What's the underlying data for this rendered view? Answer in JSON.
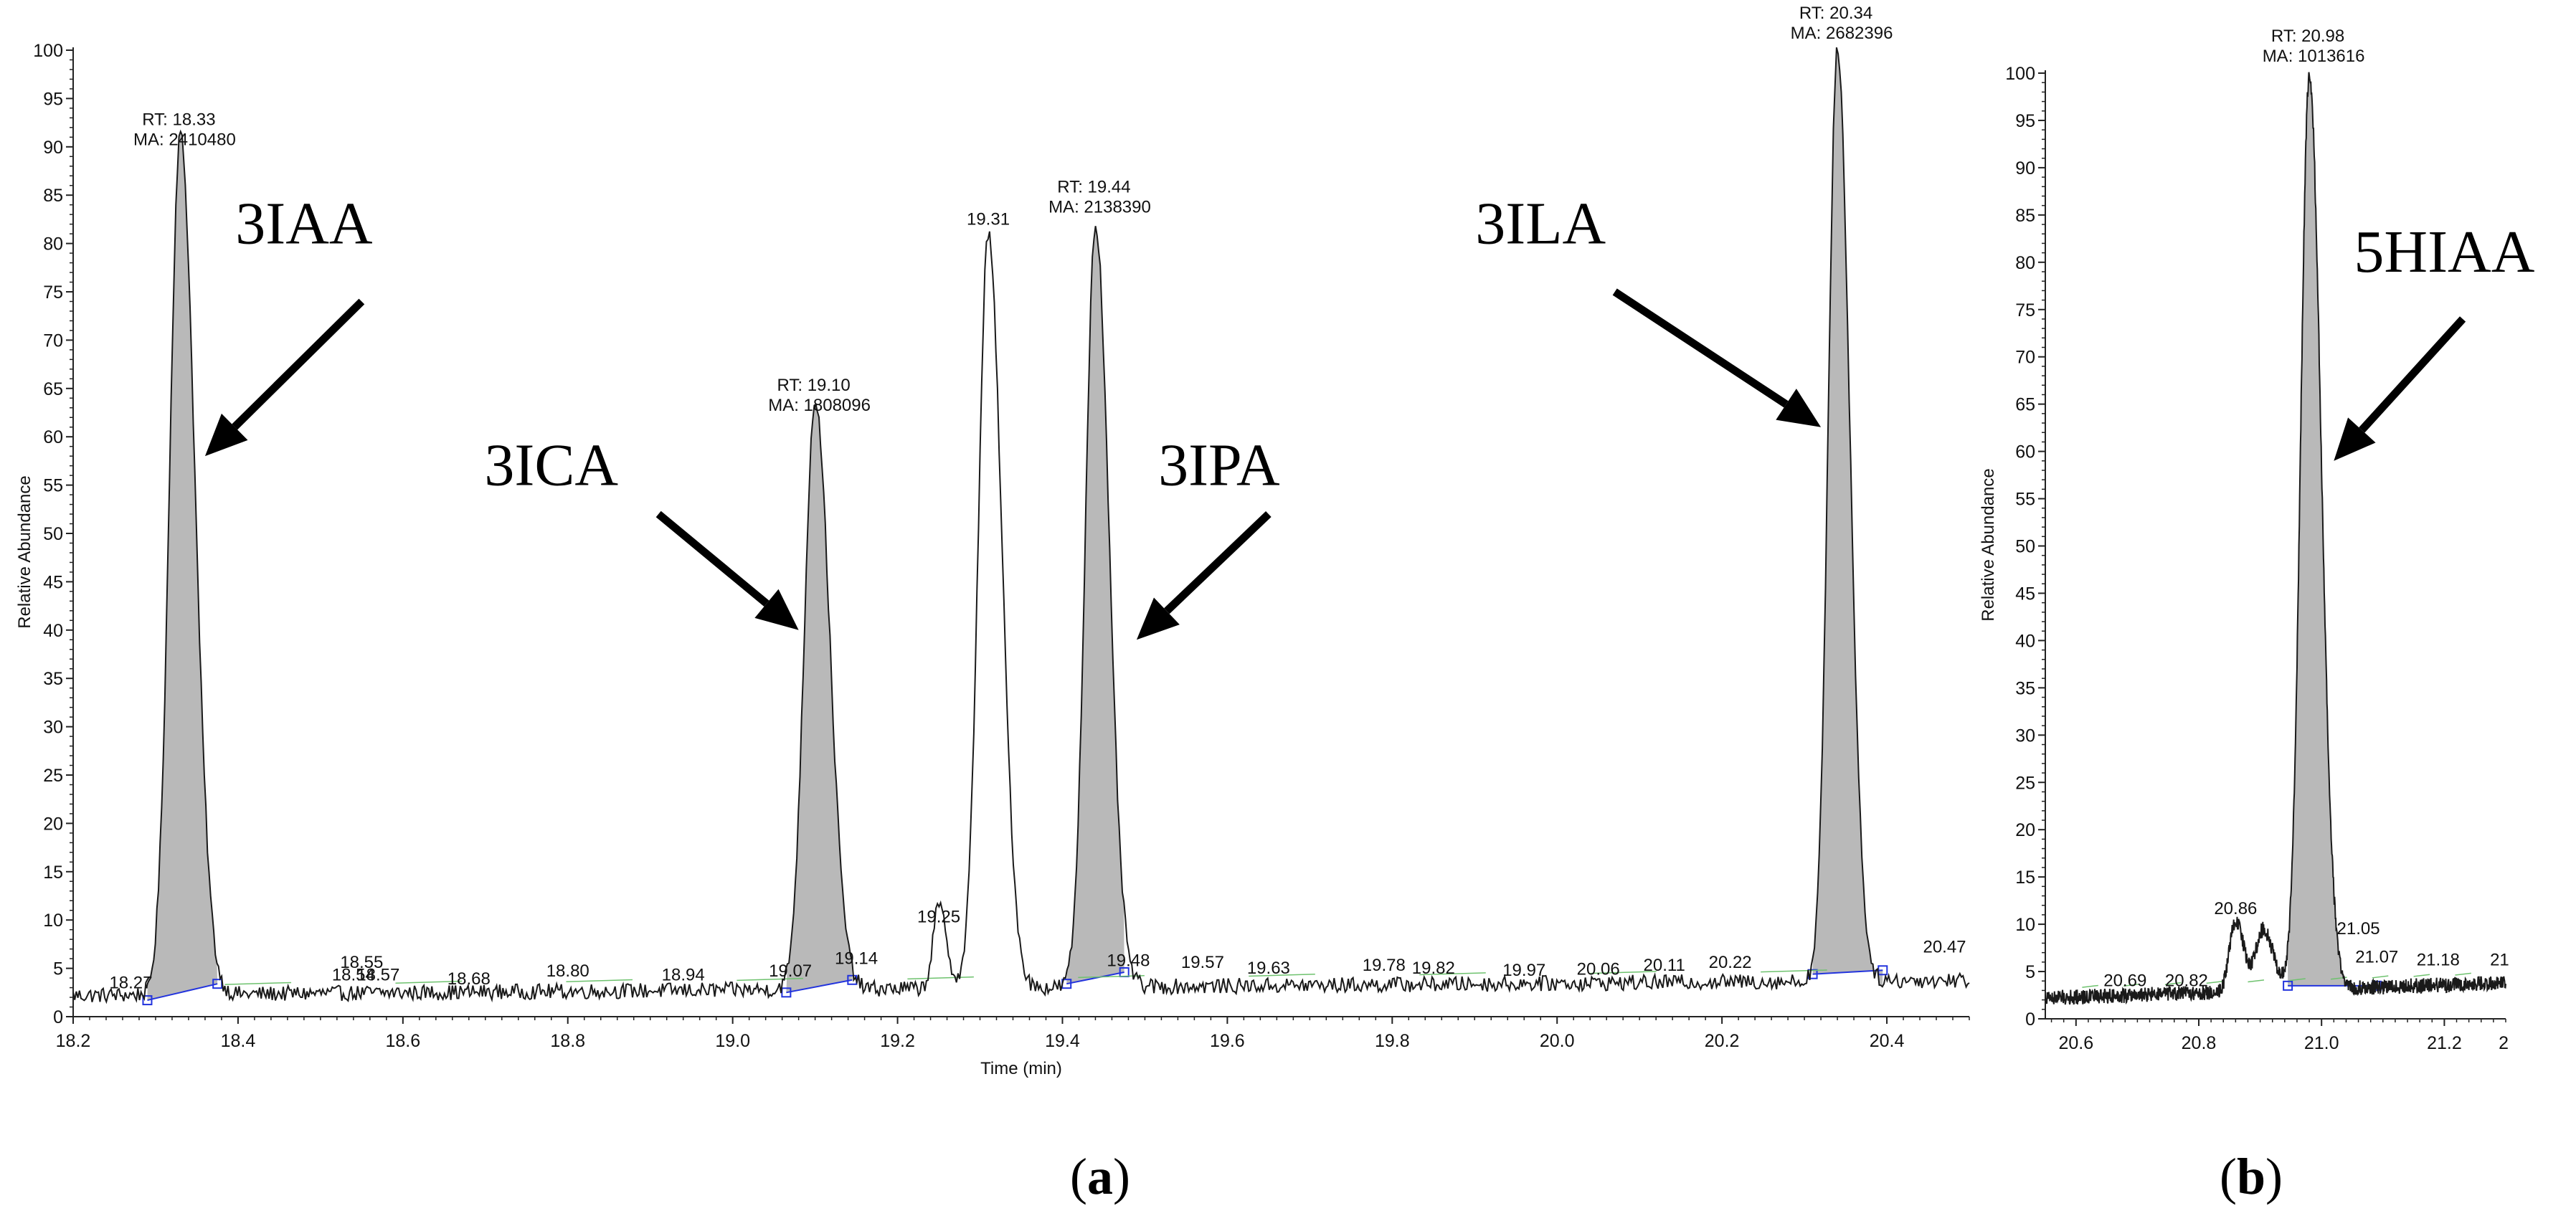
{
  "chart_data": [
    {
      "panel": "a",
      "type": "line",
      "xlabel": "Time (min)",
      "ylabel": "Relative Abundance",
      "xlim": [
        18.2,
        20.5
      ],
      "ylim": [
        0,
        100
      ],
      "xticks": [
        "18.2",
        "18.4",
        "18.6",
        "18.8",
        "19.0",
        "19.2",
        "19.4",
        "19.6",
        "19.8",
        "20.0",
        "20.2",
        "20.4"
      ],
      "yticks": [
        "0",
        "5",
        "10",
        "15",
        "20",
        "25",
        "30",
        "35",
        "40",
        "45",
        "50",
        "55",
        "60",
        "65",
        "70",
        "75",
        "80",
        "85",
        "90",
        "95",
        "100"
      ],
      "peaks": [
        {
          "rt": 18.33,
          "height": 89,
          "sigma": 0.013,
          "shaded": true,
          "start": 18.29,
          "end": 18.375,
          "base_start": 1.7,
          "base_end": 3.4
        },
        {
          "rt": 19.1,
          "height": 61,
          "sigma": 0.013,
          "shaded": true,
          "start": 19.065,
          "end": 19.145,
          "base_start": 2.5,
          "base_end": 3.8
        },
        {
          "rt": 19.25,
          "height": 8.5,
          "sigma": 0.007,
          "shaded": false
        },
        {
          "rt": 19.31,
          "height": 78,
          "sigma": 0.012,
          "shaded": false
        },
        {
          "rt": 19.44,
          "height": 79,
          "sigma": 0.012,
          "shaded": true,
          "start": 19.405,
          "end": 19.475,
          "base_start": 3.4,
          "base_end": 4.6
        },
        {
          "rt": 20.34,
          "height": 96.5,
          "sigma": 0.011,
          "shaded": true,
          "start": 20.31,
          "end": 20.395,
          "base_start": 4.4,
          "base_end": 4.8
        }
      ],
      "peak_annotations": [
        {
          "rt": 18.33,
          "y": 89,
          "rt_text": "RT: 18.33",
          "ma_text": "MA: 2410480"
        },
        {
          "rt": 19.1,
          "y": 61.5,
          "rt_text": "RT: 19.10",
          "ma_text": "MA: 1808096"
        },
        {
          "rt": 19.44,
          "y": 82,
          "rt_text": "RT: 19.44",
          "ma_text": "MA: 2138390"
        },
        {
          "rt": 20.34,
          "y": 100,
          "rt_text": "RT: 20.34",
          "ma_text": "MA: 2682396"
        }
      ],
      "labels": [
        {
          "text": "18.27",
          "x": 18.27,
          "y": 2.5
        },
        {
          "text": "18.54",
          "x": 18.54,
          "y": 3.3
        },
        {
          "text": "18.55",
          "x": 18.55,
          "y": 4.6
        },
        {
          "text": "18.57",
          "x": 18.57,
          "y": 3.3
        },
        {
          "text": "18.68",
          "x": 18.68,
          "y": 2.9
        },
        {
          "text": "18.80",
          "x": 18.8,
          "y": 3.7
        },
        {
          "text": "18.94",
          "x": 18.94,
          "y": 3.3
        },
        {
          "text": "19.07",
          "x": 19.07,
          "y": 3.7
        },
        {
          "text": "19.14",
          "x": 19.15,
          "y": 5.0
        },
        {
          "text": "19.25",
          "x": 19.25,
          "y": 9.3
        },
        {
          "text": "19.31",
          "x": 19.31,
          "y": 81.5
        },
        {
          "text": "19.48",
          "x": 19.48,
          "y": 4.8
        },
        {
          "text": "19.57",
          "x": 19.57,
          "y": 4.6
        },
        {
          "text": "19.63",
          "x": 19.65,
          "y": 4.0
        },
        {
          "text": "19.78",
          "x": 19.79,
          "y": 4.3
        },
        {
          "text": "19.82",
          "x": 19.85,
          "y": 4.0
        },
        {
          "text": "19.97",
          "x": 19.96,
          "y": 3.8
        },
        {
          "text": "20.06",
          "x": 20.05,
          "y": 3.9
        },
        {
          "text": "20.11",
          "x": 20.13,
          "y": 4.3
        },
        {
          "text": "20.22",
          "x": 20.21,
          "y": 4.6
        },
        {
          "text": "20.47",
          "x": 20.47,
          "y": 6.2
        }
      ],
      "compounds": [
        {
          "text": "3IAA",
          "tx": 18.48,
          "ty": 80,
          "from": [
            18.55,
            74
          ],
          "to": [
            18.36,
            58
          ]
        },
        {
          "text": "3ICA",
          "tx": 18.78,
          "ty": 55,
          "from": [
            18.91,
            52
          ],
          "to": [
            19.08,
            40
          ]
        },
        {
          "text": "3IPA",
          "tx": 19.59,
          "ty": 55,
          "from": [
            19.65,
            52
          ],
          "to": [
            19.49,
            39
          ]
        },
        {
          "text": "3ILA",
          "tx": 19.98,
          "ty": 80,
          "from": [
            20.07,
            75
          ],
          "to": [
            20.32,
            61
          ]
        }
      ],
      "panel_label": {
        "open": "(",
        "letter": "a",
        "close": ")"
      }
    },
    {
      "panel": "b",
      "type": "line",
      "xlabel": "",
      "ylabel": "Relative Abundance",
      "xlim": [
        20.55,
        21.3
      ],
      "ylim": [
        0,
        100
      ],
      "xticks": [
        "20.6",
        "20.8",
        "21.0",
        "21.2"
      ],
      "x_last_tick": "2",
      "yticks": [
        "0",
        "5",
        "10",
        "15",
        "20",
        "25",
        "30",
        "35",
        "40",
        "45",
        "50",
        "55",
        "60",
        "65",
        "70",
        "75",
        "80",
        "85",
        "90",
        "95",
        "100"
      ],
      "peaks": [
        {
          "rt": 20.86,
          "height": 7.5,
          "sigma": 0.01,
          "shaded": false
        },
        {
          "rt": 20.905,
          "height": 6.5,
          "sigma": 0.012,
          "shaded": false
        },
        {
          "rt": 20.98,
          "height": 96.5,
          "sigma": 0.014,
          "shaded": true,
          "start": 20.945,
          "end": 21.09,
          "base_start": 3.5,
          "base_end": 3.5
        }
      ],
      "peak_annotations": [
        {
          "rt": 20.98,
          "y": 100,
          "rt_text": "RT: 20.98",
          "ma_text": "MA: 1013616"
        }
      ],
      "labels": [
        {
          "text": "20.69",
          "x": 20.68,
          "y": 3.0
        },
        {
          "text": "20.82",
          "x": 20.78,
          "y": 3.0
        },
        {
          "text": "20.86",
          "x": 20.86,
          "y": 10.6
        },
        {
          "text": "21.05",
          "x": 21.06,
          "y": 8.5
        },
        {
          "text": "21.07",
          "x": 21.09,
          "y": 5.5
        },
        {
          "text": "21.18",
          "x": 21.19,
          "y": 5.2
        },
        {
          "text": "21",
          "x": 21.29,
          "y": 5.2
        }
      ],
      "compounds": [
        {
          "text": "5HIAA",
          "tx": 21.2,
          "ty": 79,
          "from": [
            21.23,
            74
          ],
          "to": [
            21.02,
            59
          ]
        }
      ],
      "panel_label": {
        "open": "(",
        "letter": "b",
        "close": ")"
      }
    }
  ]
}
